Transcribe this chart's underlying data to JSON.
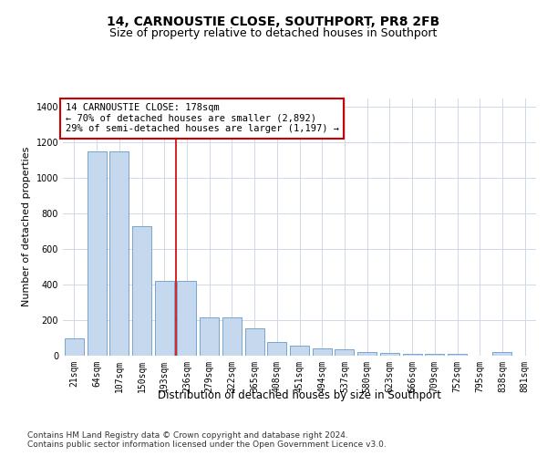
{
  "title": "14, CARNOUSTIE CLOSE, SOUTHPORT, PR8 2FB",
  "subtitle": "Size of property relative to detached houses in Southport",
  "xlabel": "Distribution of detached houses by size in Southport",
  "ylabel": "Number of detached properties",
  "categories": [
    "21sqm",
    "64sqm",
    "107sqm",
    "150sqm",
    "193sqm",
    "236sqm",
    "279sqm",
    "322sqm",
    "365sqm",
    "408sqm",
    "451sqm",
    "494sqm",
    "537sqm",
    "580sqm",
    "623sqm",
    "666sqm",
    "709sqm",
    "752sqm",
    "795sqm",
    "838sqm",
    "881sqm"
  ],
  "values": [
    100,
    1150,
    1150,
    730,
    420,
    420,
    215,
    215,
    155,
    75,
    55,
    40,
    35,
    20,
    15,
    12,
    10,
    10,
    0,
    20,
    0
  ],
  "bar_color": "#c5d8ee",
  "bar_edge_color": "#6699cc",
  "vline_pos": 4.5,
  "vline_color": "#cc0000",
  "annotation_box_text": "14 CARNOUSTIE CLOSE: 178sqm\n← 70% of detached houses are smaller (2,892)\n29% of semi-detached houses are larger (1,197) →",
  "annotation_box_color": "#cc0000",
  "ylim": [
    0,
    1450
  ],
  "yticks": [
    0,
    200,
    400,
    600,
    800,
    1000,
    1200,
    1400
  ],
  "footer_text": "Contains HM Land Registry data © Crown copyright and database right 2024.\nContains public sector information licensed under the Open Government Licence v3.0.",
  "background_color": "#ffffff",
  "grid_color": "#d0d8e8",
  "title_fontsize": 10,
  "subtitle_fontsize": 9,
  "ylabel_fontsize": 8,
  "xlabel_fontsize": 8.5,
  "tick_fontsize": 7,
  "annotation_fontsize": 7.5,
  "footer_fontsize": 6.5
}
